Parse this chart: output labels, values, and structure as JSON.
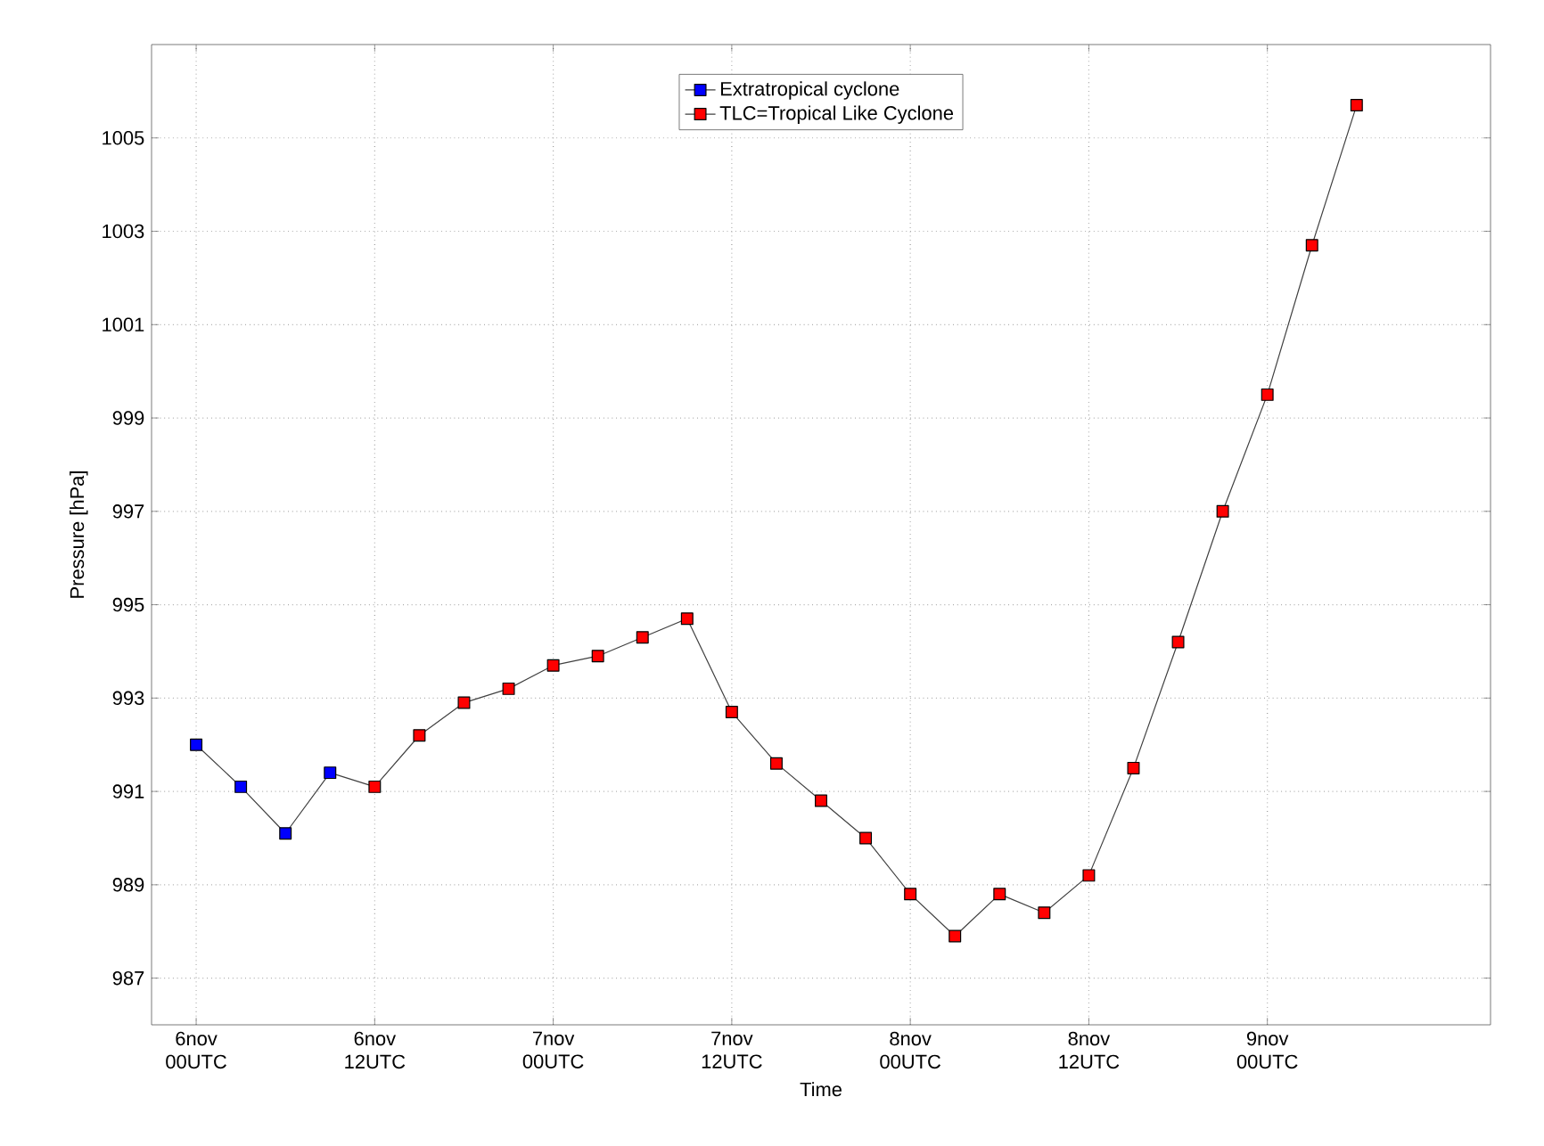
{
  "chart_data": {
    "type": "line",
    "xlabel": "Time",
    "ylabel": "Pressure [hPa]",
    "categories": [
      "6nov 00UTC",
      null,
      null,
      null,
      "6nov 12UTC",
      null,
      null,
      null,
      "7nov 00UTC",
      null,
      null,
      null,
      "7nov 12UTC",
      null,
      null,
      null,
      "8nov 00UTC",
      null,
      null,
      null,
      "8nov 12UTC",
      null,
      null,
      null,
      "9nov 00UTC",
      null,
      null
    ],
    "ylim": [
      986,
      1007
    ],
    "yticks": [
      987,
      989,
      991,
      993,
      995,
      997,
      999,
      1001,
      1003,
      1005
    ],
    "grid": true,
    "legend": "top",
    "marker": "square",
    "line_style": "solid",
    "series": [
      {
        "name": "Extratropical cyclone",
        "color": "#0000ff",
        "values": [
          992.0,
          991.1,
          990.1,
          991.4,
          null,
          null,
          null,
          null,
          null,
          null,
          null,
          null,
          null,
          null,
          null,
          null,
          null,
          null,
          null,
          null,
          null,
          null,
          null,
          null,
          null,
          null,
          null
        ]
      },
      {
        "color": "#404040",
        "marker": "none",
        "values": [
          null,
          null,
          null,
          991.4,
          991.1,
          null,
          null,
          null,
          null,
          null,
          null,
          null,
          null,
          null,
          null,
          null,
          null,
          null,
          null,
          null,
          null,
          null,
          null,
          null,
          null,
          null,
          null
        ]
      },
      {
        "name": "TLC=Tropical Like Cyclone",
        "color": "#ff0000",
        "values": [
          null,
          null,
          null,
          null,
          991.1,
          992.2,
          992.9,
          993.2,
          993.7,
          993.9,
          994.3,
          994.7,
          992.7,
          991.6,
          990.8,
          990.0,
          988.8,
          987.9,
          988.8,
          988.4,
          989.2,
          991.5,
          994.2,
          997.0,
          999.5,
          1002.7,
          1005.7
        ]
      }
    ]
  }
}
